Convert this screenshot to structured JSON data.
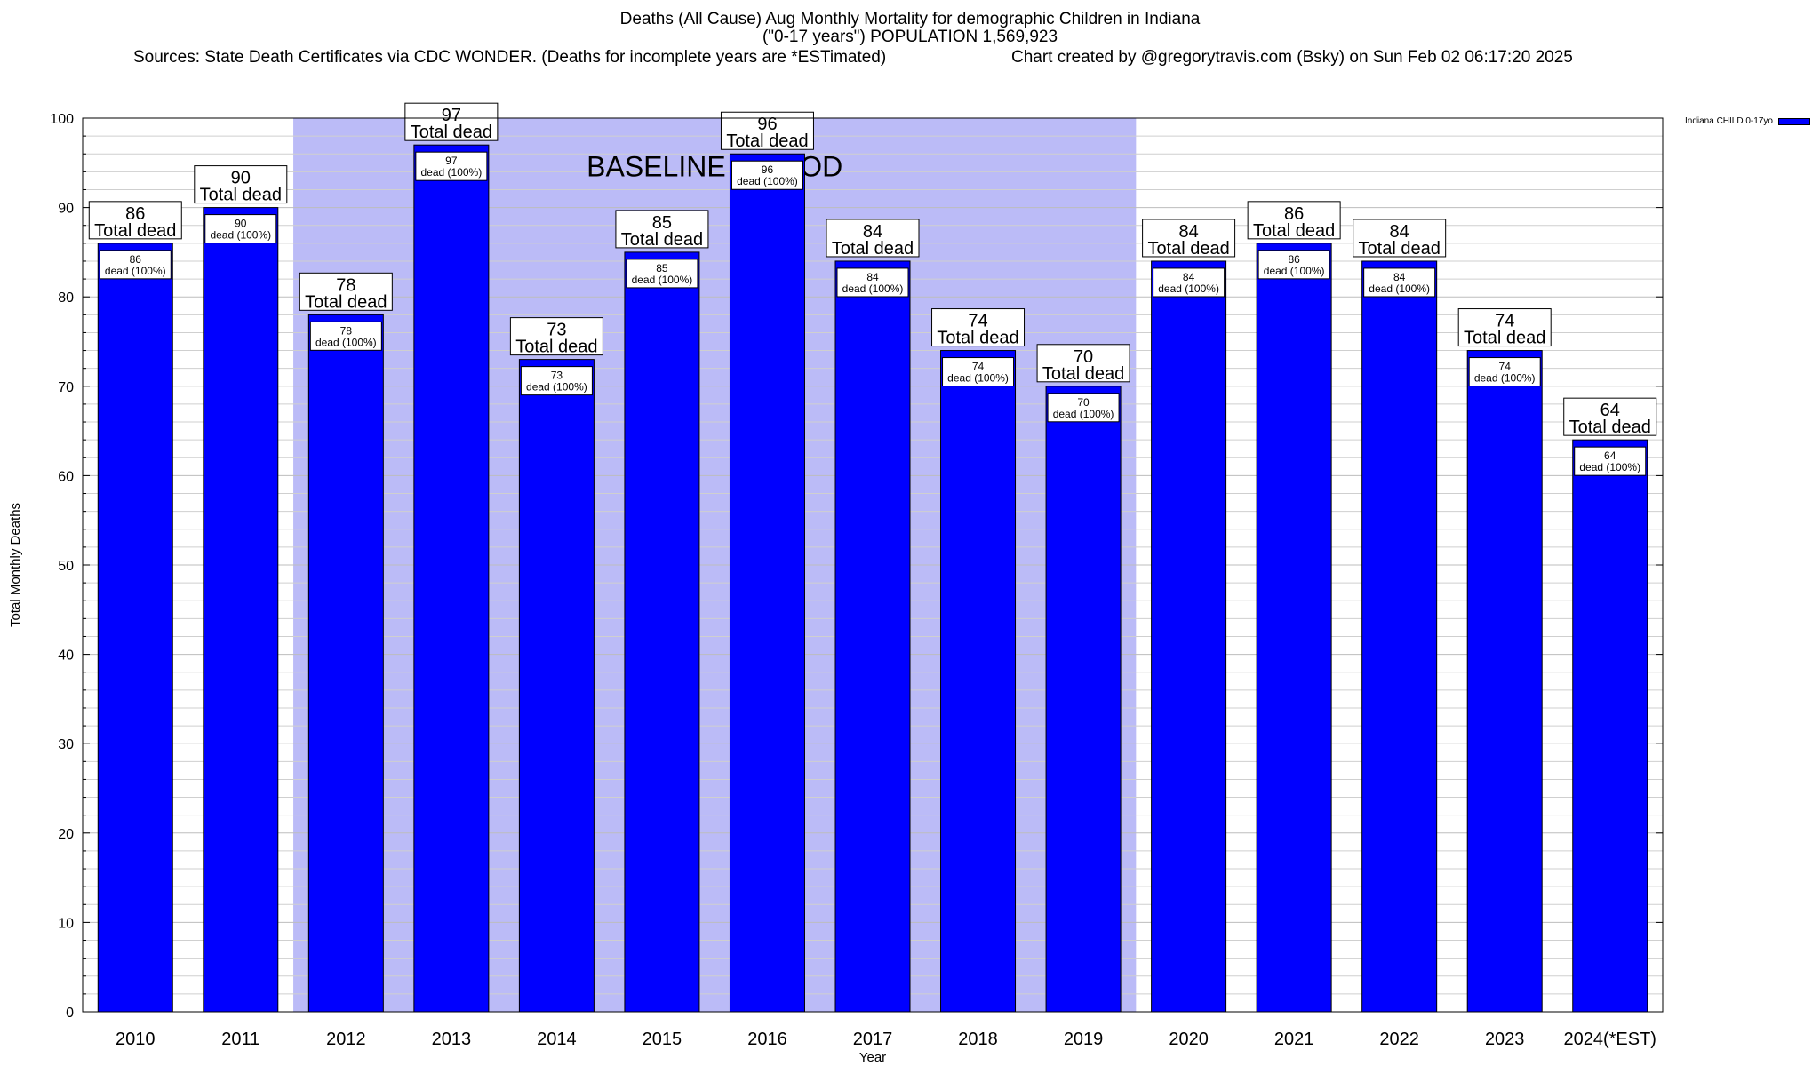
{
  "title": {
    "line1": "Deaths (All Cause) Aug Monthly Mortality for demographic Children in Indiana",
    "line2": "(\"0-17 years\") POPULATION 1,569,923",
    "sources": "Sources: State Death Certificates via CDC WONDER. (Deaths for incomplete years are *ESTimated)",
    "credit": "Chart created by @gregorytravis.com (Bsky) on Sun Feb 02 06:17:20 2025"
  },
  "legend": {
    "label": "Indiana CHILD 0-17yo",
    "color": "#0000ff",
    "placement": "top-right"
  },
  "chart_data": {
    "type": "bar",
    "categories": [
      "2010",
      "2011",
      "2012",
      "2013",
      "2014",
      "2015",
      "2016",
      "2017",
      "2018",
      "2019",
      "2020",
      "2021",
      "2022",
      "2023",
      "2024(*EST)"
    ],
    "series": [
      {
        "name": "Indiana CHILD 0-17yo",
        "values": [
          86,
          90,
          78,
          97,
          73,
          85,
          96,
          84,
          74,
          70,
          84,
          86,
          84,
          74,
          64
        ]
      }
    ],
    "xlabel": "Year",
    "ylabel": "Total Monthly Deaths",
    "ylim": [
      0,
      100
    ],
    "yticks": [
      0,
      10,
      20,
      30,
      40,
      50,
      60,
      70,
      80,
      90,
      100
    ],
    "grid": true,
    "top_label_suffix": "Total dead",
    "inner_label_suffix": "dead (100%)",
    "baseline": {
      "label": "BASELINE PERIOD",
      "from": "2012",
      "to": "2019",
      "color": "#bbbbf7"
    },
    "bar_color": "#0000ff"
  }
}
